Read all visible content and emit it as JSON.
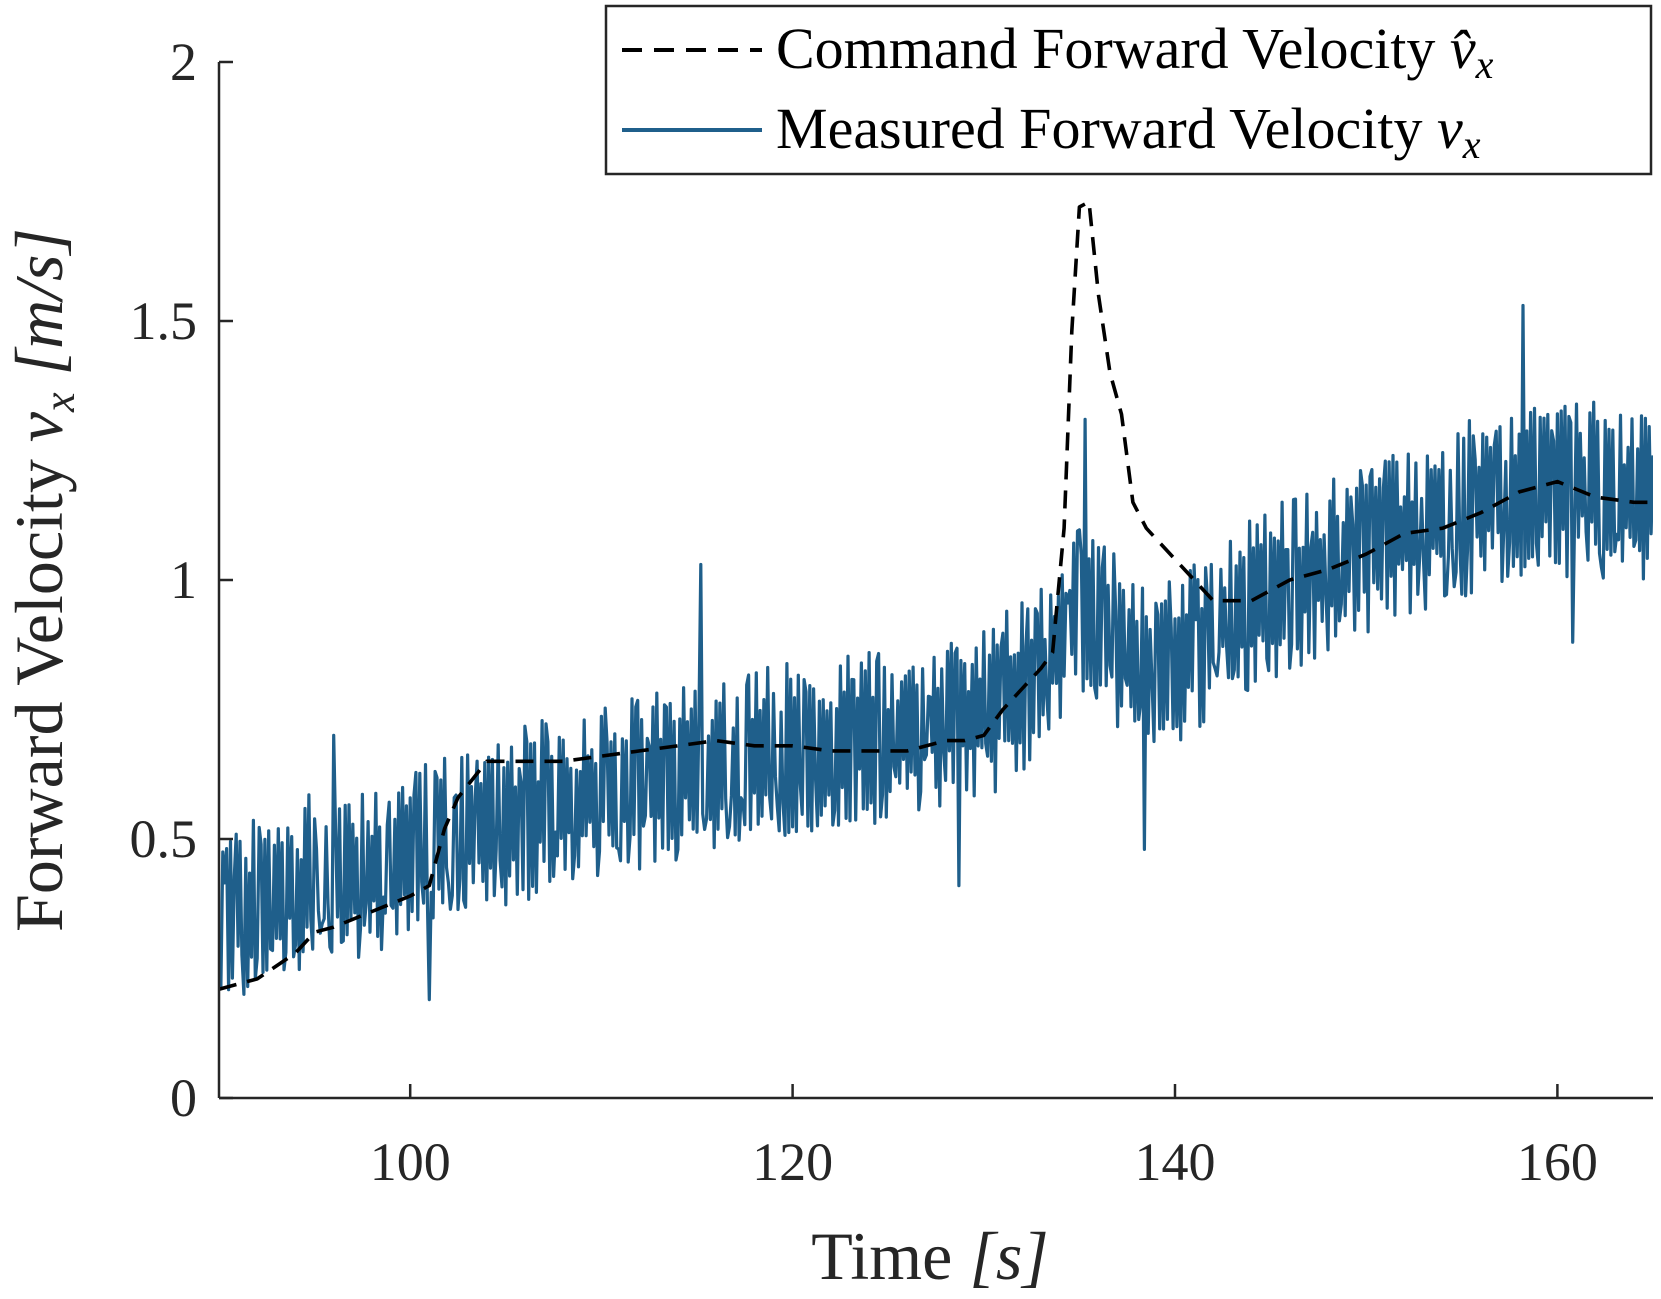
{
  "chart_data": {
    "type": "line",
    "title": "",
    "xlabel": "Time [s]",
    "ylabel": "Forward Velocity v_x [m/s]",
    "xlim": [
      90,
      165
    ],
    "ylim": [
      0,
      2
    ],
    "xticks": [
      100,
      120,
      140,
      160
    ],
    "yticks": [
      0,
      0.5,
      1,
      1.5,
      2
    ],
    "xtick_labels": [
      "100",
      "120",
      "140",
      "160"
    ],
    "ytick_labels": [
      "0",
      "0.5",
      "1",
      "1.5",
      "2"
    ],
    "grid": false,
    "legend_position": "top-right",
    "series": [
      {
        "name": "Command Forward Velocity v̂ₓ",
        "legend_label": "Command Forward Velocity v̂x",
        "style": "dashed",
        "color": "#000000",
        "x": [
          90,
          92,
          94,
          95,
          96,
          98,
          100,
          101,
          101.8,
          102.5,
          104,
          105,
          106,
          108,
          110,
          112,
          114,
          116,
          118,
          120,
          122,
          124,
          126,
          128,
          129,
          130,
          131,
          132,
          133,
          133.6,
          134.2,
          134.6,
          135,
          135.5,
          136,
          136.6,
          137.2,
          137.8,
          138.5,
          139.5,
          140.5,
          142,
          144,
          146,
          148,
          150,
          152,
          154,
          156,
          158,
          160,
          162,
          164,
          165
        ],
        "y": [
          0.21,
          0.23,
          0.28,
          0.32,
          0.33,
          0.36,
          0.39,
          0.41,
          0.52,
          0.58,
          0.65,
          0.65,
          0.65,
          0.65,
          0.66,
          0.67,
          0.68,
          0.69,
          0.68,
          0.68,
          0.67,
          0.67,
          0.67,
          0.69,
          0.69,
          0.7,
          0.75,
          0.79,
          0.83,
          0.86,
          1.1,
          1.48,
          1.72,
          1.73,
          1.55,
          1.4,
          1.32,
          1.15,
          1.1,
          1.06,
          1.02,
          0.96,
          0.96,
          1.0,
          1.02,
          1.05,
          1.09,
          1.1,
          1.13,
          1.17,
          1.19,
          1.16,
          1.15,
          1.15
        ]
      },
      {
        "name": "Measured Forward Velocity vₓ",
        "legend_label": "Measured Forward Velocity vx",
        "style": "solid",
        "color": "#1F5F8B",
        "x_start": 90,
        "x_end": 165,
        "sample_interval_s": 0.1,
        "mean_trend": {
          "x": [
            90,
            95,
            100,
            103,
            110,
            120,
            125,
            130,
            133,
            135,
            137,
            140,
            143,
            150,
            158,
            165
          ],
          "y": [
            0.34,
            0.42,
            0.46,
            0.52,
            0.59,
            0.68,
            0.7,
            0.74,
            0.82,
            0.93,
            0.88,
            0.83,
            0.94,
            1.06,
            1.18,
            1.17
          ]
        },
        "noise_amplitude": 0.11,
        "extremes": [
          {
            "x": 96.0,
            "y": 0.7
          },
          {
            "x": 101.0,
            "y": 0.19
          },
          {
            "x": 115.2,
            "y": 1.03
          },
          {
            "x": 128.7,
            "y": 0.41
          },
          {
            "x": 135.3,
            "y": 1.31
          },
          {
            "x": 138.4,
            "y": 0.48
          },
          {
            "x": 158.2,
            "y": 1.53
          },
          {
            "x": 160.8,
            "y": 0.88
          }
        ]
      }
    ]
  },
  "legend": {
    "command_label": "Command Forward Velocity ",
    "command_symbol": "v̂",
    "command_sub": "x",
    "measured_label": "Measured Forward Velocity ",
    "measured_symbol": "v",
    "measured_sub": "x"
  },
  "axis_titles": {
    "x_text": "Time ",
    "x_unit": "[s]",
    "y_text": "Forward Velocity ",
    "y_symbol": "v",
    "y_sub": "x",
    "y_unit": " [m/s]"
  },
  "colors": {
    "measured": "#1F5F8B",
    "command": "#000000",
    "axis": "#262626"
  }
}
